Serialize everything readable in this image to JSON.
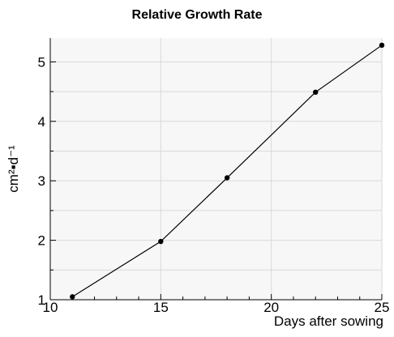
{
  "chart_data": {
    "type": "line",
    "title": "Relative Growth Rate",
    "xlabel": "Days after sowing",
    "ylabel": "cm²▪d⁻¹",
    "xlim": [
      10,
      25
    ],
    "ylim": [
      1,
      5.4
    ],
    "x_ticks": [
      10,
      15,
      20,
      25
    ],
    "y_ticks": [
      1,
      2,
      3,
      4,
      5
    ],
    "grid": true,
    "series": [
      {
        "x": [
          11,
          15,
          18,
          22,
          25
        ],
        "y": [
          1.05,
          1.98,
          3.05,
          4.49,
          5.28
        ]
      }
    ],
    "colors": {
      "line": "#000000",
      "marker": "#000000",
      "plot_background": "#f7f7f7",
      "grid": "#d9d9d9"
    }
  }
}
